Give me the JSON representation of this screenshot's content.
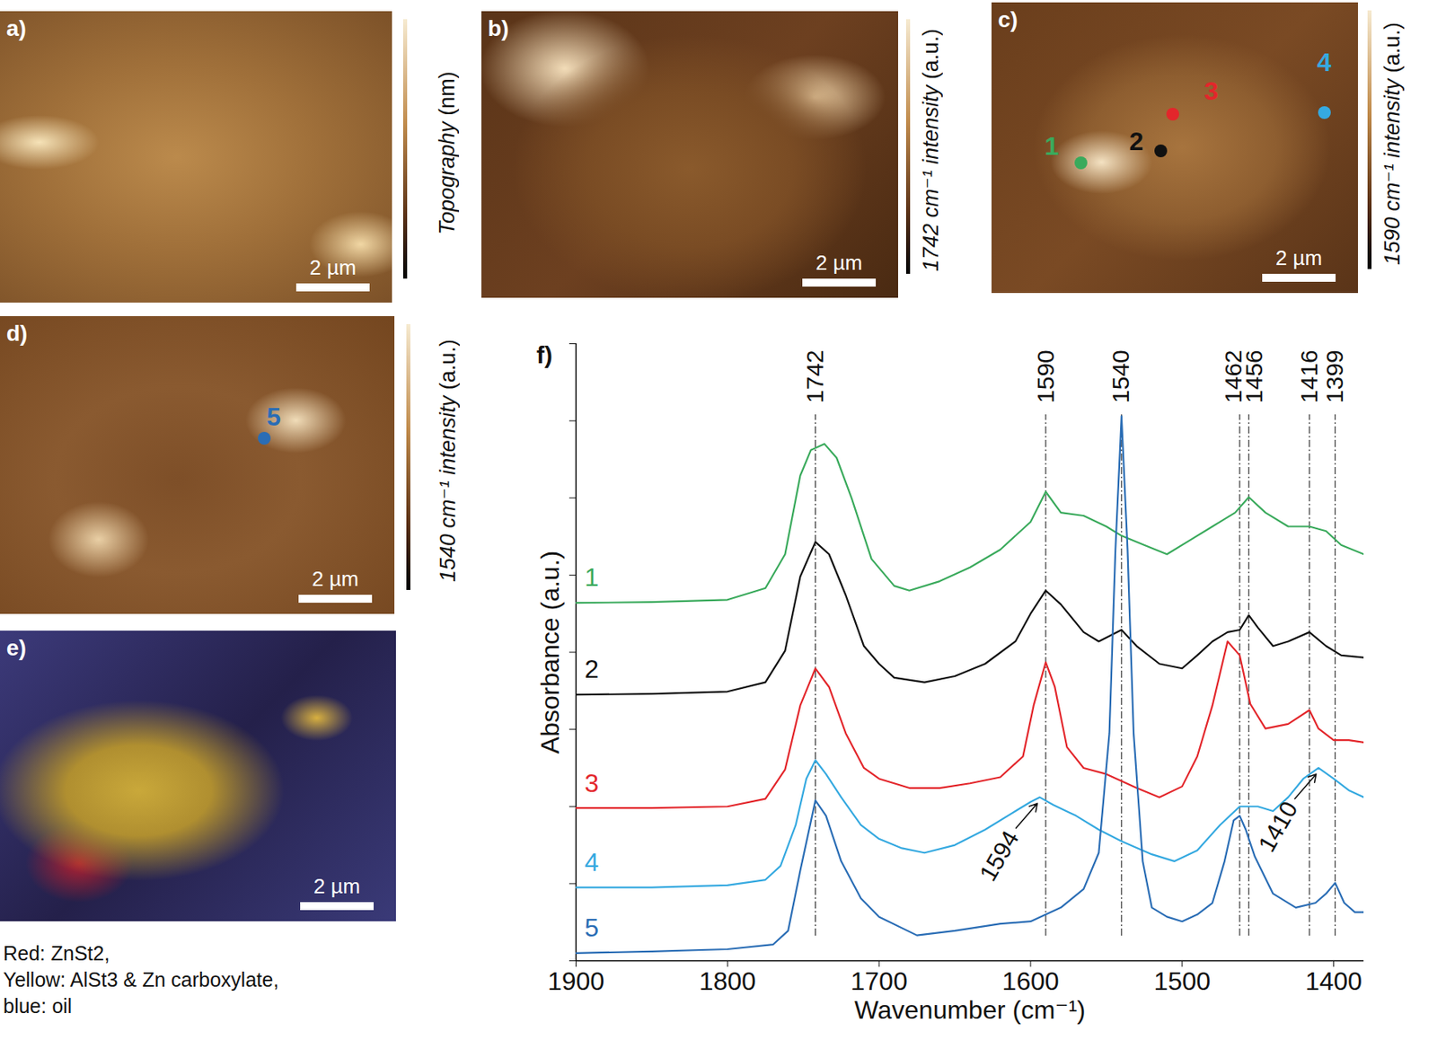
{
  "panels": [
    {
      "label": "a)",
      "colorbar_label": "Topography (nm)",
      "scale_bar": "2 µm"
    },
    {
      "label": "b)",
      "colorbar_label": "1742 cm⁻¹ intensity (a.u.)",
      "scale_bar": "2 µm"
    },
    {
      "label": "c)",
      "colorbar_label": "1590 cm⁻¹ intensity (a.u.)",
      "scale_bar": "2 µm",
      "markers": [
        "1",
        "2",
        "3",
        "4"
      ]
    },
    {
      "label": "d)",
      "colorbar_label": "1540 cm⁻¹ intensity (a.u.)",
      "scale_bar": "2 µm",
      "markers": [
        "5"
      ]
    },
    {
      "label": "e)",
      "scale_bar": "2 µm",
      "caption": [
        "Red: ZnSt2,",
        "Yellow: AlSt3 & Zn carboxylate,",
        "blue: oil"
      ]
    }
  ],
  "chart_data": {
    "type": "line",
    "title": "f)",
    "x_label": "Wavenumber (cm⁻¹)",
    "y_label": "Absorbance (a.u.)",
    "xlim": [
      1900,
      1380
    ],
    "xticks": [
      1900,
      1800,
      1700,
      1600,
      1500,
      1400
    ],
    "ylim": [
      0,
      8
    ],
    "yticks": [
      0,
      1,
      2,
      3,
      4,
      5,
      6,
      7,
      8
    ],
    "tick_labels": "x",
    "grid": false,
    "peaks": [
      1742,
      1590,
      1540,
      1462,
      1456,
      1416,
      1399
    ],
    "annotations": [
      {
        "value": 1594,
        "series": "4"
      },
      {
        "value": 1410,
        "series": "4"
      }
    ],
    "series": [
      {
        "name": "1",
        "color": "#3aaa5c",
        "x": [
          1900,
          1850,
          1800,
          1775,
          1762,
          1752,
          1745,
          1736,
          1728,
          1718,
          1705,
          1690,
          1680,
          1660,
          1640,
          1620,
          1600,
          1590,
          1580,
          1565,
          1550,
          1540,
          1525,
          1510,
          1495,
          1480,
          1465,
          1456,
          1445,
          1430,
          1416,
          1405,
          1395,
          1380
        ],
        "values": [
          4.64,
          4.65,
          4.68,
          4.83,
          5.27,
          6.29,
          6.62,
          6.7,
          6.52,
          5.99,
          5.21,
          4.86,
          4.8,
          4.92,
          5.1,
          5.33,
          5.69,
          6.08,
          5.81,
          5.77,
          5.63,
          5.51,
          5.39,
          5.27,
          5.45,
          5.63,
          5.81,
          6.01,
          5.81,
          5.63,
          5.63,
          5.57,
          5.39,
          5.27
        ]
      },
      {
        "name": "2",
        "color": "#111111",
        "x": [
          1900,
          1850,
          1800,
          1775,
          1762,
          1752,
          1742,
          1733,
          1722,
          1710,
          1700,
          1690,
          1670,
          1650,
          1630,
          1610,
          1600,
          1590,
          1580,
          1565,
          1555,
          1540,
          1530,
          1515,
          1500,
          1490,
          1480,
          1470,
          1462,
          1456,
          1450,
          1440,
          1430,
          1416,
          1405,
          1395,
          1380
        ],
        "values": [
          3.45,
          3.46,
          3.49,
          3.61,
          4.02,
          4.98,
          5.43,
          5.27,
          4.74,
          4.08,
          3.85,
          3.67,
          3.61,
          3.69,
          3.85,
          4.14,
          4.5,
          4.8,
          4.62,
          4.26,
          4.14,
          4.29,
          4.08,
          3.85,
          3.79,
          3.96,
          4.14,
          4.26,
          4.29,
          4.48,
          4.32,
          4.08,
          4.14,
          4.26,
          4.08,
          3.96,
          3.93
        ]
      },
      {
        "name": "3",
        "color": "#e3262b",
        "x": [
          1900,
          1850,
          1800,
          1775,
          1762,
          1752,
          1742,
          1733,
          1722,
          1710,
          1700,
          1680,
          1660,
          1640,
          1620,
          1605,
          1598,
          1590,
          1584,
          1576,
          1565,
          1550,
          1530,
          1515,
          1500,
          1490,
          1480,
          1470,
          1462,
          1455,
          1445,
          1430,
          1416,
          1410,
          1400,
          1390,
          1380
        ],
        "values": [
          1.98,
          1.98,
          2.0,
          2.1,
          2.48,
          3.31,
          3.79,
          3.55,
          2.95,
          2.5,
          2.36,
          2.24,
          2.24,
          2.3,
          2.38,
          2.65,
          3.31,
          3.87,
          3.55,
          2.77,
          2.5,
          2.42,
          2.24,
          2.12,
          2.26,
          2.65,
          3.31,
          4.14,
          3.96,
          3.33,
          3.01,
          3.07,
          3.25,
          3.01,
          2.86,
          2.86,
          2.83
        ]
      },
      {
        "name": "4",
        "color": "#35a9e0",
        "x": [
          1900,
          1850,
          1800,
          1775,
          1765,
          1755,
          1748,
          1742,
          1735,
          1725,
          1712,
          1700,
          1685,
          1670,
          1650,
          1630,
          1610,
          1600,
          1594,
          1585,
          1570,
          1555,
          1540,
          1520,
          1505,
          1490,
          1475,
          1462,
          1450,
          1440,
          1430,
          1420,
          1410,
          1400,
          1390,
          1380
        ],
        "values": [
          0.95,
          0.95,
          0.98,
          1.05,
          1.23,
          1.76,
          2.36,
          2.6,
          2.42,
          2.12,
          1.76,
          1.58,
          1.46,
          1.4,
          1.5,
          1.7,
          1.94,
          2.06,
          2.12,
          2.02,
          1.88,
          1.7,
          1.55,
          1.38,
          1.29,
          1.43,
          1.76,
          2.0,
          2.0,
          1.94,
          2.12,
          2.36,
          2.5,
          2.36,
          2.21,
          2.12
        ]
      },
      {
        "name": "5",
        "color": "#2a6db5",
        "x": [
          1900,
          1850,
          1800,
          1770,
          1760,
          1752,
          1742,
          1735,
          1725,
          1712,
          1700,
          1675,
          1650,
          1620,
          1600,
          1580,
          1565,
          1555,
          1548,
          1544,
          1540,
          1536,
          1532,
          1526,
          1520,
          1510,
          1500,
          1490,
          1480,
          1472,
          1466,
          1462,
          1458,
          1452,
          1440,
          1425,
          1412,
          1405,
          1399,
          1393,
          1386,
          1380
        ],
        "values": [
          0.1,
          0.12,
          0.15,
          0.21,
          0.39,
          1.17,
          2.08,
          1.88,
          1.29,
          0.81,
          0.57,
          0.33,
          0.39,
          0.48,
          0.51,
          0.69,
          0.93,
          1.4,
          2.95,
          5.33,
          7.06,
          5.33,
          2.95,
          1.29,
          0.69,
          0.57,
          0.51,
          0.6,
          0.75,
          1.29,
          1.82,
          1.88,
          1.7,
          1.35,
          0.87,
          0.69,
          0.75,
          0.87,
          1.01,
          0.75,
          0.63,
          0.63
        ]
      }
    ]
  }
}
